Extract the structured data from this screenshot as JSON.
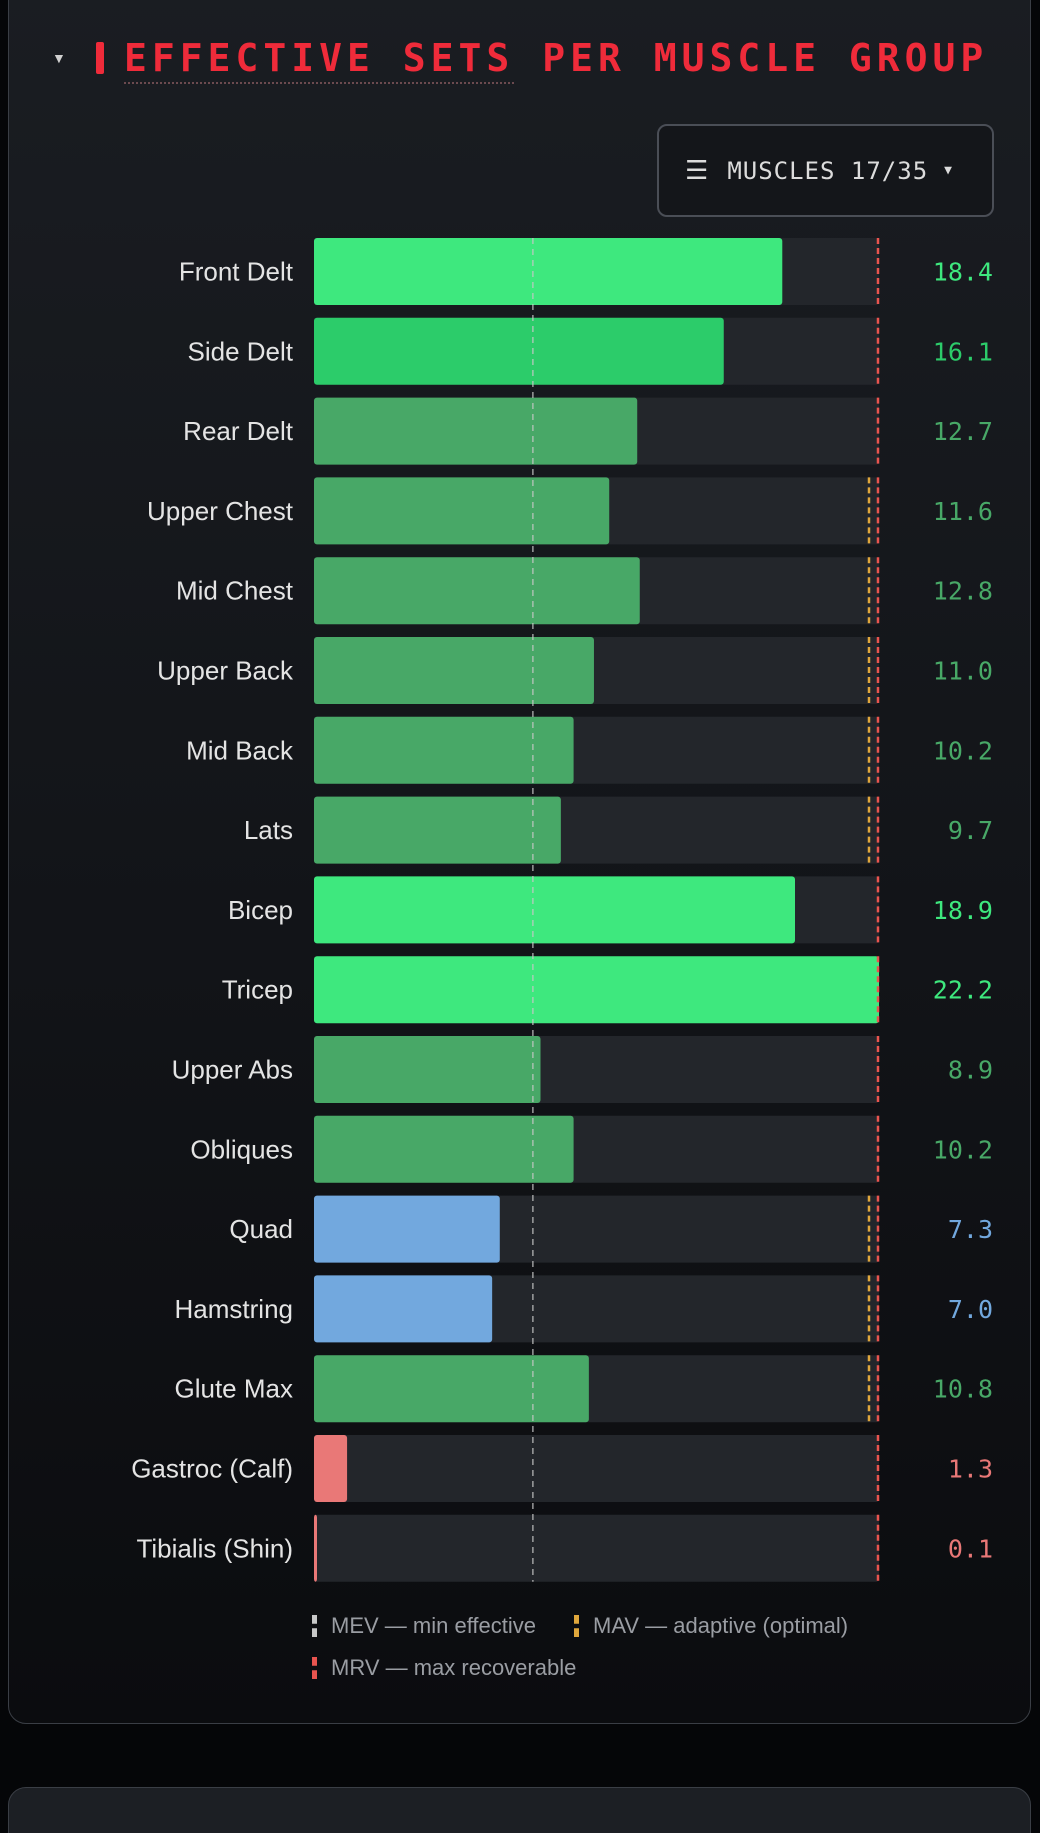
{
  "header": {
    "title_part1": "EFFECTIVE SETS",
    "title_part2": "PER MUSCLE GROUP"
  },
  "filter": {
    "label": "MUSCLES 17/35"
  },
  "colors": {
    "accent": "#ef2b3a",
    "bright_green": "#3ee87e",
    "mid_green": "#2ccc6a",
    "green": "#48a867",
    "blue": "#72a8de",
    "red": "#e97877",
    "track": "#23262b",
    "mev": "#c8c8c8",
    "mav": "#e0a73c",
    "mrv": "#e9544f"
  },
  "chart_data": {
    "type": "bar",
    "orientation": "horizontal",
    "xlim": [
      0,
      22.2
    ],
    "thresholds": {
      "mev": 8.6
    },
    "categories": [
      "Front Delt",
      "Side Delt",
      "Rear Delt",
      "Upper Chest",
      "Mid Chest",
      "Upper Back",
      "Mid Back",
      "Lats",
      "Bicep",
      "Tricep",
      "Upper Abs",
      "Obliques",
      "Quad",
      "Hamstring",
      "Glute Max",
      "Gastroc (Calf)",
      "Tibialis (Shin)"
    ],
    "values": [
      18.4,
      16.1,
      12.7,
      11.6,
      12.8,
      11.0,
      10.2,
      9.7,
      18.9,
      22.2,
      8.9,
      10.2,
      7.3,
      7.0,
      10.8,
      1.3,
      0.1
    ],
    "value_labels": [
      "18.4",
      "16.1",
      "12.7",
      "11.6",
      "12.8",
      "11.0",
      "10.2",
      "9.7",
      "18.9",
      "22.2",
      "8.9",
      "10.2",
      "7.3",
      "7.0",
      "10.8",
      "1.3",
      "0.1"
    ],
    "bar_colors": [
      "bright_green",
      "mid_green",
      "green",
      "green",
      "green",
      "green",
      "green",
      "green",
      "bright_green",
      "bright_green",
      "green",
      "green",
      "blue",
      "blue",
      "green",
      "red",
      "red"
    ],
    "mav_marker": [
      false,
      false,
      false,
      true,
      true,
      true,
      true,
      true,
      false,
      false,
      false,
      false,
      true,
      true,
      true,
      false,
      false
    ],
    "mrv_marker": true
  },
  "legend": {
    "mev": "MEV — min effective",
    "mav": "MAV — adaptive (optimal)",
    "mrv": "MRV — max recoverable"
  }
}
